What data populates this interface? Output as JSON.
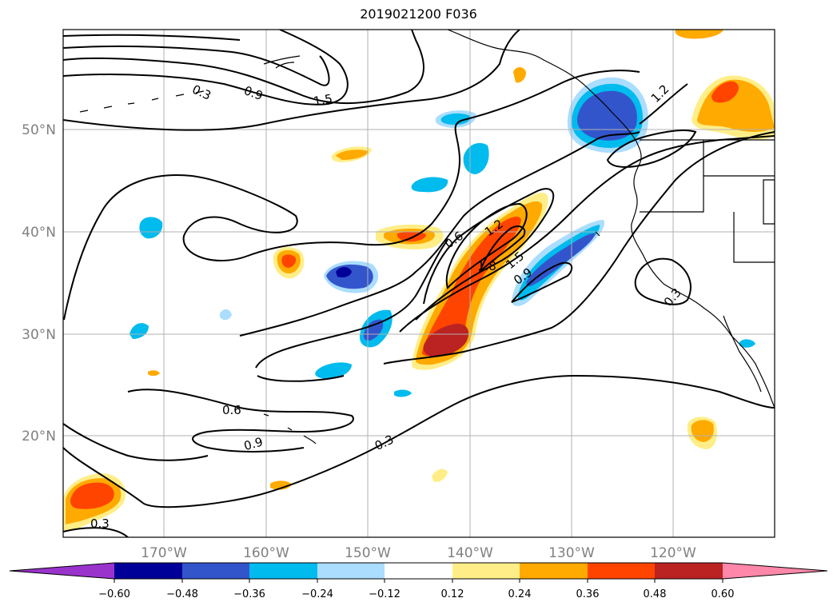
{
  "title": "2019021200 F036",
  "axes": {
    "lat_labels": [
      "50°N",
      "40°N",
      "30°N",
      "20°N"
    ],
    "lon_labels": [
      "170°W",
      "160°W",
      "150°W",
      "140°W",
      "130°W",
      "120°W"
    ]
  },
  "contour_labels": [
    "0.3",
    "0.9",
    "1.5",
    "1.2",
    "0.6",
    "1.2",
    "1.8",
    "1.5",
    "0.9",
    "0.3",
    "0.6",
    "0.9",
    "0.3",
    "0.3"
  ],
  "colorbar": {
    "colors": [
      "#9933cc",
      "#000099",
      "#3355cc",
      "#00bbee",
      "#aaddff",
      "#ffffff",
      "#ffee88",
      "#ffaa00",
      "#ff4400",
      "#bb2222",
      "#ff88aa"
    ],
    "tick_labels": [
      "−0.60",
      "−0.48",
      "−0.36",
      "−0.24",
      "−0.12",
      "0.12",
      "0.24",
      "0.36",
      "0.48",
      "0.60"
    ]
  }
}
